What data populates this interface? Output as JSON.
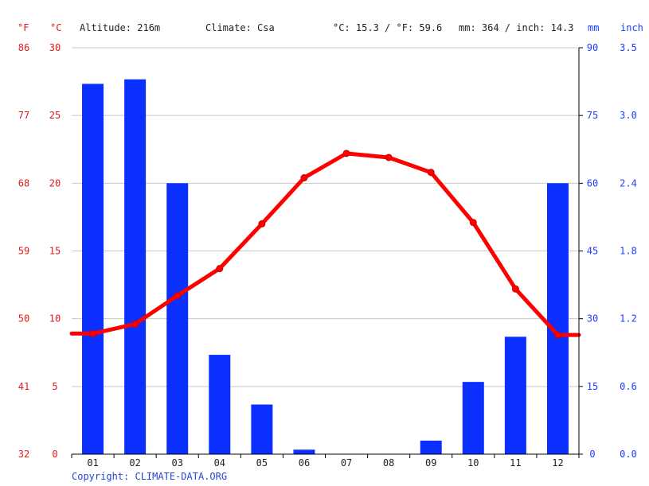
{
  "header": {
    "unit_f": "°F",
    "unit_c": "°C",
    "altitude": "Altitude: 216m",
    "climate": "Climate: Csa",
    "avg_temp": "°C: 15.3 / °F: 59.6",
    "precip_total": "mm: 364 / inch: 14.3",
    "unit_mm": "mm",
    "unit_inch": "inch"
  },
  "copyright": "Copyright: CLIMATE-DATA.ORG",
  "colors": {
    "temperature": "#ff0000",
    "precipitation": "#0a2fff",
    "grid": "#c8c8c8",
    "axis_red": "#e31a1c",
    "axis_blue": "#1f3cff"
  },
  "chart_data": {
    "type": "bar",
    "categories": [
      "01",
      "02",
      "03",
      "04",
      "05",
      "06",
      "07",
      "08",
      "09",
      "10",
      "11",
      "12"
    ],
    "series": [
      {
        "kind": "bar",
        "axis": "precipitation",
        "values": [
          82,
          83,
          60,
          22,
          11,
          1,
          0,
          0,
          3,
          16,
          26,
          60
        ]
      },
      {
        "kind": "line",
        "axis": "temperature",
        "values": [
          8.9,
          9.6,
          11.7,
          13.7,
          17.0,
          20.4,
          22.2,
          21.9,
          20.8,
          17.1,
          12.2,
          8.8
        ]
      }
    ],
    "y_celsius": {
      "ticks": [
        0,
        5,
        10,
        15,
        20,
        25,
        30
      ],
      "ylim": [
        0,
        30
      ]
    },
    "y_fahrenheit": {
      "ticks": [
        32,
        41,
        50,
        59,
        68,
        77,
        86
      ]
    },
    "y_mm": {
      "ticks": [
        0,
        15,
        30,
        45,
        60,
        75,
        90
      ],
      "ylim": [
        0,
        90
      ]
    },
    "y_inch": {
      "ticks": [
        "0.0",
        "0.6",
        "1.2",
        "1.8",
        "2.4",
        "3.0",
        "3.5"
      ]
    },
    "grid": true
  }
}
